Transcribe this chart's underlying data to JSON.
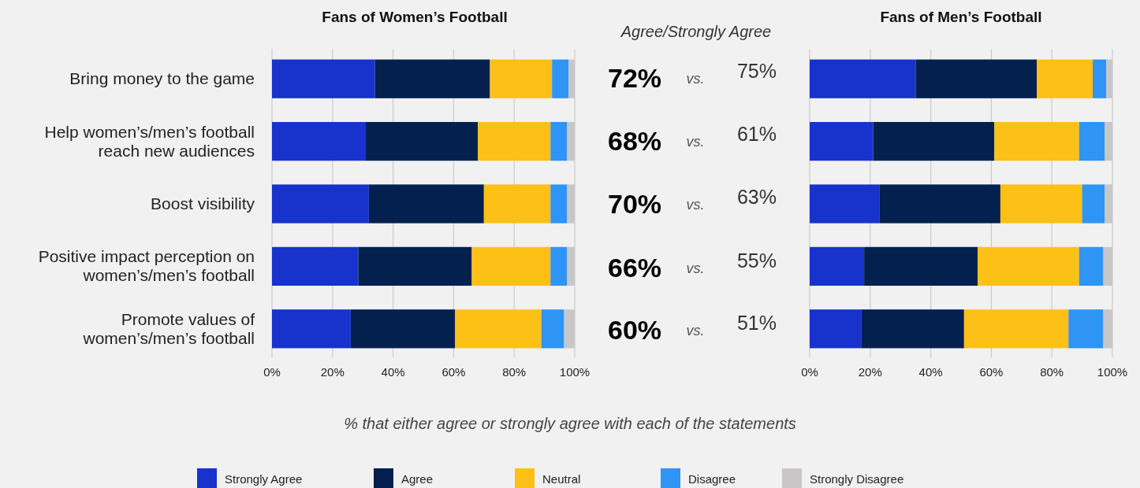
{
  "chart_data": [
    {
      "type": "bar",
      "orientation": "horizontal",
      "stacked": true,
      "title": "Fans of Women’s Football",
      "categories": [
        "Bring money to the game",
        "Help women’s/men’s football reach new audiences",
        "Boost visibility",
        "Positive impact perception on women’s/men’s football",
        "Promote values of women’s/men’s football"
      ],
      "series": [
        {
          "name": "Strongly Agree",
          "color": "#1733cc",
          "values": [
            34,
            31,
            32,
            28.5,
            26
          ]
        },
        {
          "name": "Agree",
          "color": "#03204e",
          "values": [
            38,
            37,
            38,
            37.5,
            34.5
          ]
        },
        {
          "name": "Neutral",
          "color": "#fcc017",
          "values": [
            20.5,
            24,
            22,
            26,
            28.5
          ]
        },
        {
          "name": "Disagree",
          "color": "#2e95f5",
          "values": [
            5.5,
            5.5,
            5.5,
            5.5,
            7.5
          ]
        },
        {
          "name": "Strongly Disagree",
          "color": "#c8c6c6",
          "values": [
            2,
            2.5,
            2.5,
            2.5,
            3.5
          ]
        }
      ],
      "xlim": [
        0,
        100
      ],
      "xticks": [
        {
          "value": 0,
          "label": "0%"
        },
        {
          "value": 20,
          "label": "20%"
        },
        {
          "value": 40,
          "label": "40%"
        },
        {
          "value": 60,
          "label": "60%"
        },
        {
          "value": 80,
          "label": "80%"
        },
        {
          "value": 100,
          "label": "100%"
        }
      ],
      "grid": "x",
      "legend": "bottom",
      "annotations": [
        "% that either agree or strongly agree with each of the statements"
      ]
    },
    {
      "type": "other",
      "title": "Agree/Strongly Agree",
      "annotations": [
        "72%",
        "vs.",
        "75%",
        "68%",
        "vs.",
        "61%",
        "70%",
        "vs.",
        "63%",
        "66%",
        "vs.",
        "55%",
        "60%",
        "vs.",
        "51%"
      ]
    },
    {
      "type": "bar",
      "orientation": "horizontal",
      "stacked": true,
      "title": "Fans of Men’s Football",
      "categories": [
        null,
        null,
        null,
        null,
        null
      ],
      "series": [
        {
          "color": "#1733cc",
          "values": [
            35,
            21,
            23,
            18,
            17
          ]
        },
        {
          "color": "#03204e",
          "values": [
            40,
            40,
            40,
            37.5,
            34
          ]
        },
        {
          "color": "#fcc017",
          "values": [
            18.5,
            28,
            27,
            33.5,
            34.5
          ]
        },
        {
          "color": "#2e95f5",
          "values": [
            4.5,
            8.5,
            7.5,
            8,
            11.5
          ]
        },
        {
          "color": "#c8c6c6",
          "values": [
            2,
            2.5,
            2.5,
            3,
            3
          ]
        }
      ],
      "xlim": [
        0,
        100
      ],
      "xticks": [
        {
          "value": 0,
          "label": "0%"
        },
        {
          "value": 20,
          "label": "20%"
        },
        {
          "value": 40,
          "label": "40%"
        },
        {
          "value": 60,
          "label": "60%"
        },
        {
          "value": 80,
          "label": "80%"
        },
        {
          "value": 100,
          "label": "100%"
        }
      ],
      "grid": "x"
    }
  ]
}
